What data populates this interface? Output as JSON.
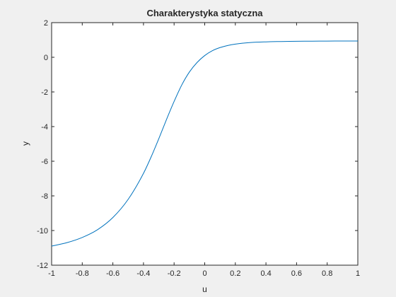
{
  "chart_data": {
    "type": "line",
    "title": "Charakterystyka statyczna",
    "xlabel": "u",
    "ylabel": "y",
    "xlim": [
      -1,
      1
    ],
    "ylim": [
      -12,
      2
    ],
    "xticks": [
      -1,
      -0.8,
      -0.6,
      -0.4,
      -0.2,
      0,
      0.2,
      0.4,
      0.6,
      0.8,
      1
    ],
    "yticks": [
      -12,
      -10,
      -8,
      -6,
      -4,
      -2,
      0,
      2
    ],
    "xtick_labels": [
      "-1",
      "-0.8",
      "-0.6",
      "-0.4",
      "-0.2",
      "0",
      "0.2",
      "0.4",
      "0.6",
      "0.8",
      "1"
    ],
    "ytick_labels": [
      "-12",
      "-10",
      "-8",
      "-6",
      "-4",
      "-2",
      "0",
      "2"
    ],
    "grid": false,
    "line_color": "#0072bd",
    "series": [
      {
        "x": [
          -1.0,
          -0.9,
          -0.8,
          -0.7,
          -0.6,
          -0.5,
          -0.4,
          -0.35,
          -0.3,
          -0.25,
          -0.2,
          -0.15,
          -0.1,
          -0.05,
          0.0,
          0.05,
          0.1,
          0.15,
          0.2,
          0.3,
          0.4,
          0.5,
          0.6,
          0.7,
          0.8,
          0.9,
          1.0
        ],
        "y": [
          -10.9,
          -10.7,
          -10.4,
          -9.95,
          -9.25,
          -8.2,
          -6.7,
          -5.75,
          -4.7,
          -3.6,
          -2.55,
          -1.6,
          -0.85,
          -0.3,
          0.1,
          0.38,
          0.56,
          0.68,
          0.76,
          0.85,
          0.89,
          0.91,
          0.925,
          0.93,
          0.935,
          0.937,
          0.94
        ]
      }
    ]
  }
}
